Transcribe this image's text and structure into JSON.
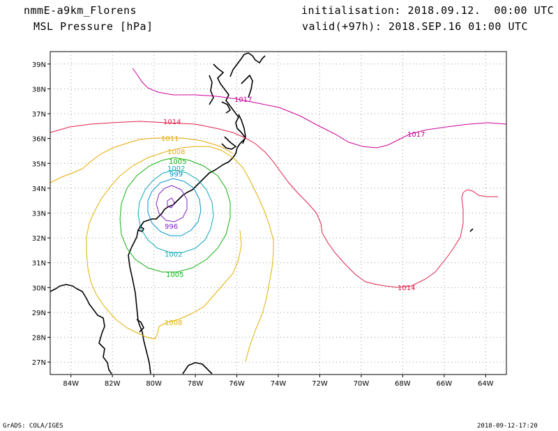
{
  "header": {
    "model_name": "nmmE-a9km_Florens",
    "field_name": "MSL Pressure [hPa]",
    "initialisation": "initialisation: 2018.09.12.  00:00 UTC",
    "valid": "valid(+97h): 2018.SEP.16 01:00 UTC"
  },
  "map": {
    "lon_range": [
      -85,
      -63
    ],
    "lat_range": [
      26.5,
      39.5
    ],
    "x_ticks": [
      "84W",
      "82W",
      "80W",
      "78W",
      "76W",
      "74W",
      "72W",
      "70W",
      "68W",
      "66W",
      "64W"
    ],
    "y_ticks": [
      "27N",
      "28N",
      "29N",
      "30N",
      "31N",
      "32N",
      "33N",
      "34N",
      "35N",
      "36N",
      "37N",
      "38N",
      "39N"
    ],
    "grid": true
  },
  "contour_labels": {
    "c1017_a": "1017",
    "c1017_b": "1017",
    "c1014_a": "1014",
    "c1014_b": "1014",
    "c1011": "1011",
    "c1008_a": "1008",
    "c1008_b": "1008",
    "c1005_a": "1005",
    "c1005_b": "1005",
    "c1002_a": "1002",
    "c1002_b": "1002",
    "c999": "999",
    "c996": "996"
  },
  "colors": {
    "c1017": "#cc0099",
    "c1014": "#e0204a",
    "c1011": "#e8a800",
    "c1008": "#e0b000",
    "c1005": "#10b010",
    "c1002": "#10a8b8",
    "c999": "#0090d0",
    "c996": "#8020c0"
  },
  "footer": {
    "left": "GrADS: COLA/IGES",
    "right": "2018-09-12-17:20"
  }
}
